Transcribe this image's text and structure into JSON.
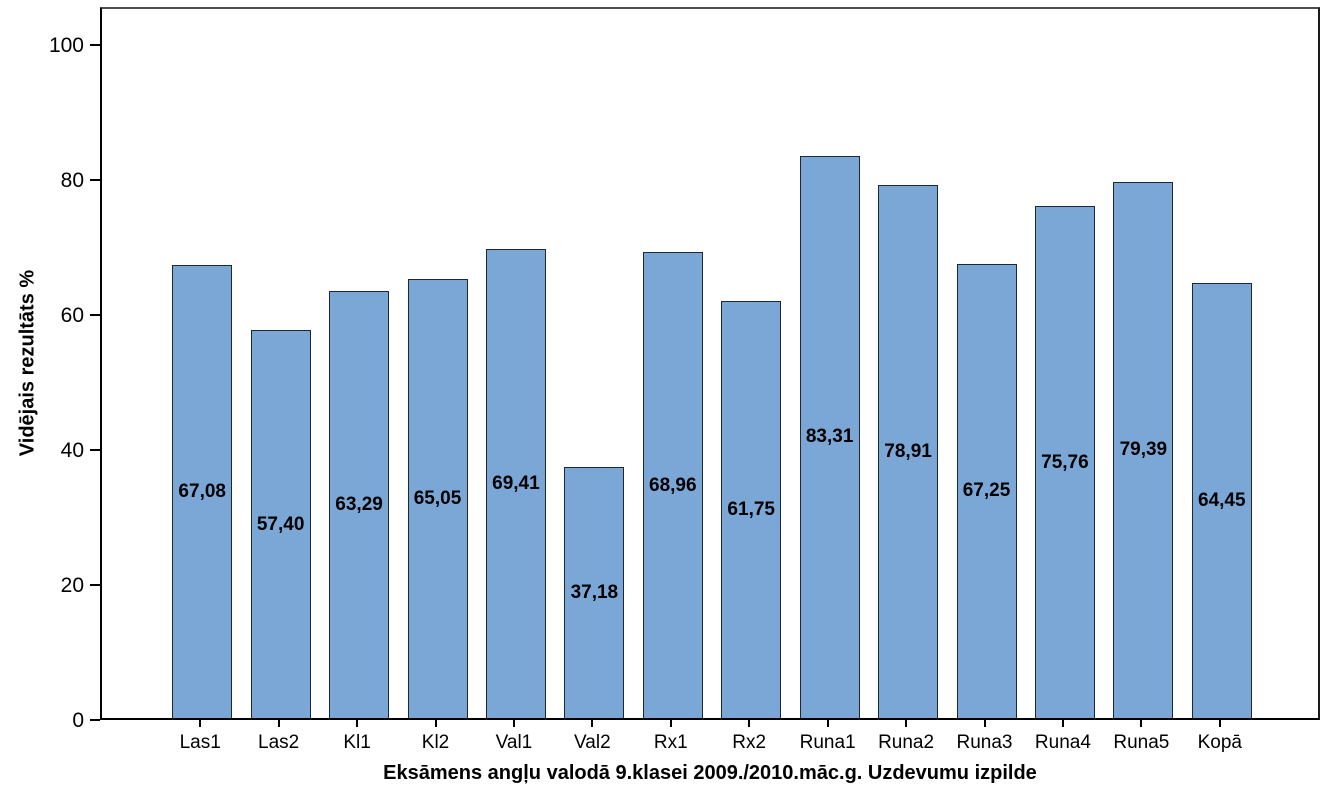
{
  "chart_data": {
    "type": "bar",
    "title": "",
    "xlabel": "Eksāmens angļu valodā 9.klasei 2009./2010.māc.g. Uzdevumu izpilde",
    "ylabel": "Vidējais rezultāts %",
    "categories": [
      "Las1",
      "Las2",
      "Kl1",
      "Kl2",
      "Val1",
      "Val2",
      "Rx1",
      "Rx2",
      "Runa1",
      "Runa2",
      "Runa3",
      "Runa4",
      "Runa5",
      "Kopā"
    ],
    "values": [
      67.08,
      57.4,
      63.29,
      65.05,
      69.41,
      37.18,
      68.96,
      61.75,
      83.31,
      78.91,
      67.25,
      75.76,
      79.39,
      64.45
    ],
    "value_labels": [
      "67,08",
      "57,40",
      "63,29",
      "65,05",
      "69,41",
      "37,18",
      "68,96",
      "61,75",
      "83,31",
      "78,91",
      "67,25",
      "75,76",
      "79,39",
      "64,45"
    ],
    "value_label_position": "center-of-bar",
    "yticks": [
      0,
      20,
      40,
      60,
      80,
      100
    ],
    "ytick_labels": [
      "0",
      "20",
      "40",
      "60",
      "80",
      "100"
    ],
    "ylim": [
      0,
      105.6
    ],
    "grid": false,
    "legend": "none",
    "bar_fill_color": "#7BA7D6",
    "bar_border_color": "#1c2833",
    "axis_color": "#000000",
    "background_color": "#ffffff"
  }
}
